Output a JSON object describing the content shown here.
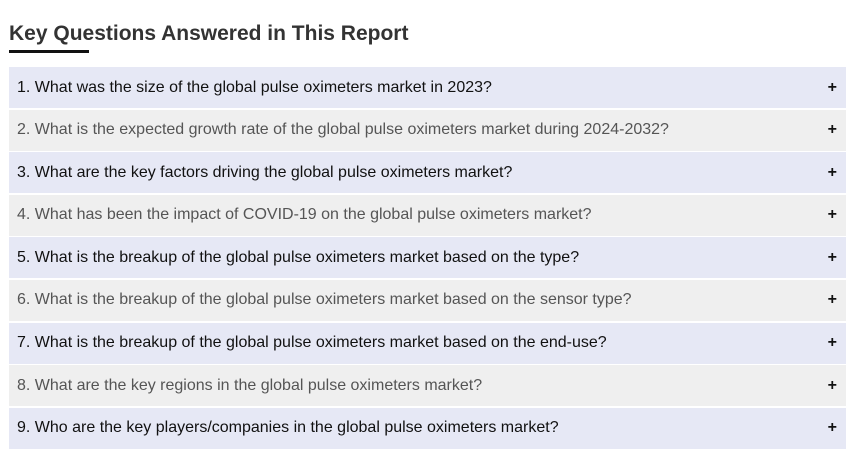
{
  "heading": "Key Questions Answered in This Report",
  "faq": [
    {
      "question": "1. What was the size of the global pulse oximeters market in 2023?",
      "toggle": "+"
    },
    {
      "question": "2. What is the expected growth rate of the global pulse oximeters market during 2024-2032?",
      "toggle": "+"
    },
    {
      "question": "3. What are the key factors driving the global pulse oximeters market?",
      "toggle": "+"
    },
    {
      "question": "4. What has been the impact of COVID-19 on the global pulse oximeters market?",
      "toggle": "+"
    },
    {
      "question": "5. What is the breakup of the global pulse oximeters market based on the type?",
      "toggle": "+"
    },
    {
      "question": "6. What is the breakup of the global pulse oximeters market based on the sensor type?",
      "toggle": "+"
    },
    {
      "question": "7. What is the breakup of the global pulse oximeters market based on the end-use?",
      "toggle": "+"
    },
    {
      "question": "8. What are the key regions in the global pulse oximeters market?",
      "toggle": "+"
    },
    {
      "question": "9. Who are the key players/companies in the global pulse oximeters market?",
      "toggle": "+"
    }
  ],
  "colors": {
    "row_odd": "#e6e8f5",
    "row_even": "#efefef",
    "text_dark": "#111111",
    "text_muted": "#555555",
    "underline": "#111111"
  },
  "icons": {
    "toggle": "plus-icon"
  }
}
